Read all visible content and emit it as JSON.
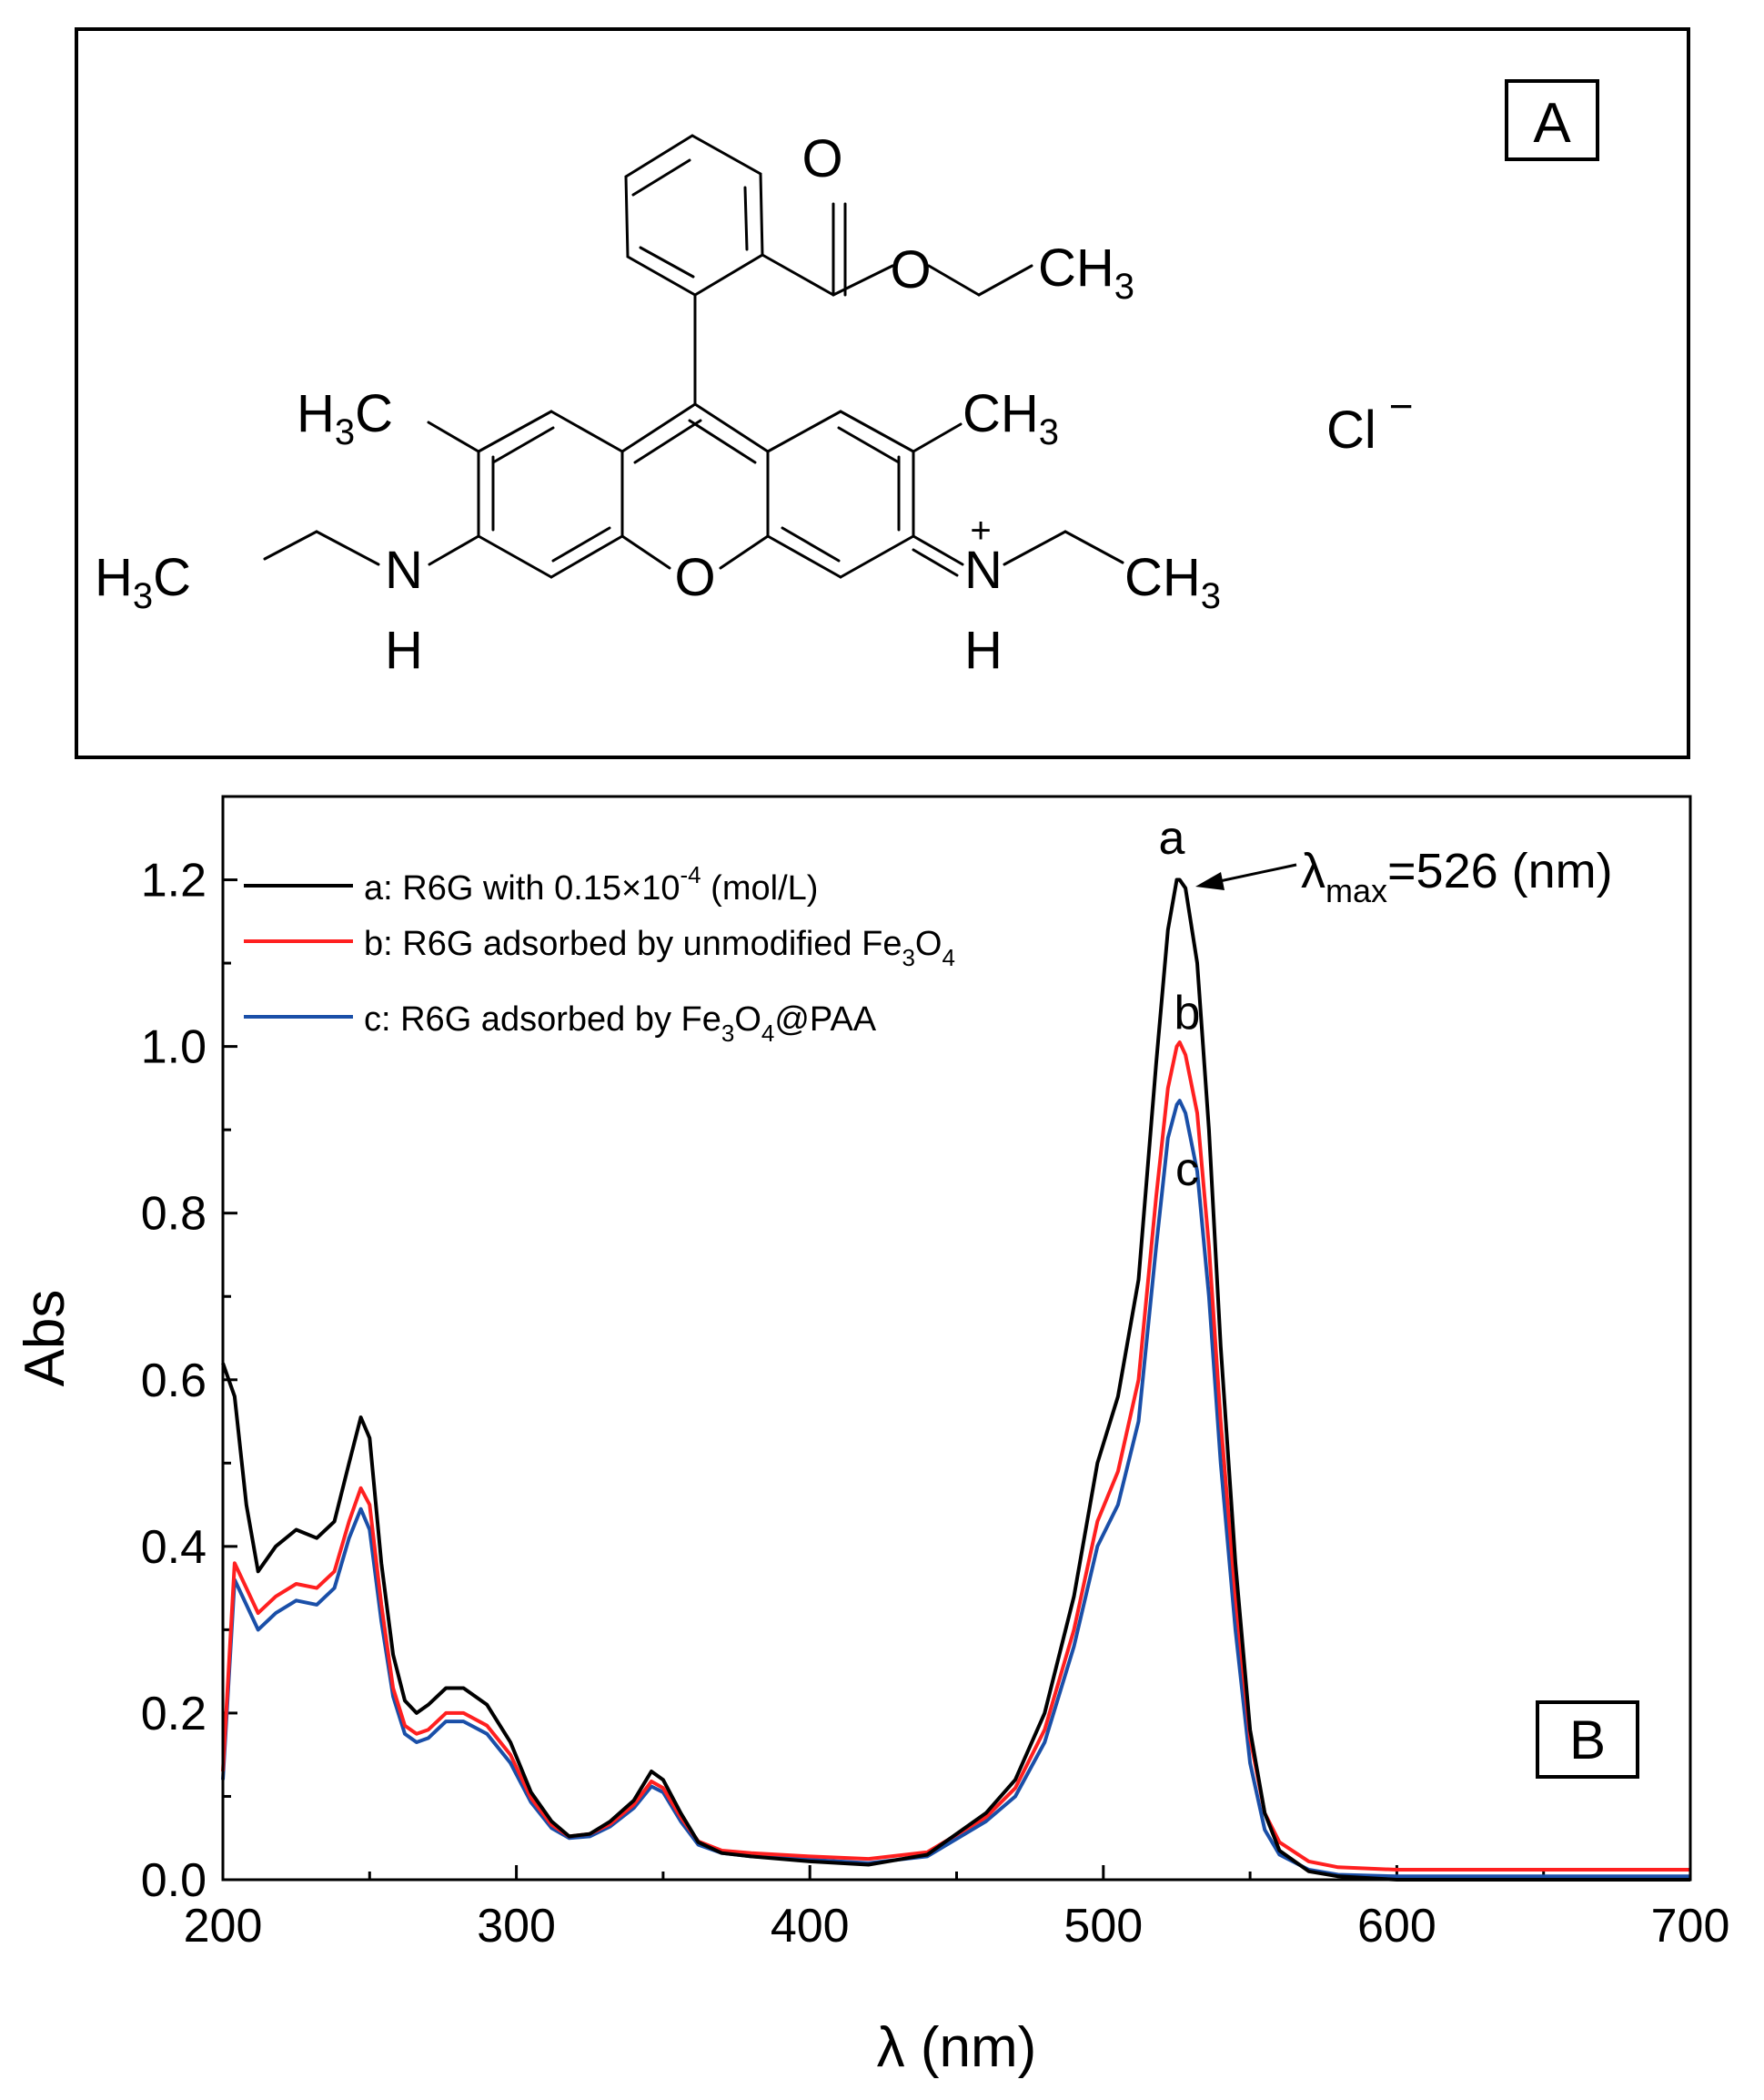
{
  "panel_a": {
    "label": "A",
    "atoms": {
      "carbonyl_o": "O",
      "ester_o": "O",
      "ester_ch3": "CH",
      "ester_ch3_sub": "3",
      "left_methyl": "H",
      "left_methyl_sub": "3",
      "left_methyl_c": "C",
      "right_methyl": "CH",
      "right_methyl_sub": "3",
      "chloride": "Cl",
      "chloride_charge": "−",
      "left_ethyl": "H",
      "left_ethyl_sub": "3",
      "left_ethyl_c": "C",
      "left_n": "N",
      "left_nh": "H",
      "ring_o": "O",
      "right_n": "N",
      "right_n_charge": "+",
      "right_nh": "H",
      "right_ethyl": "CH",
      "right_ethyl_sub": "3"
    }
  },
  "panel_b": {
    "label": "B",
    "annotation": {
      "lambda": "λ",
      "sub": "max",
      "text": "=526 (nm)"
    },
    "peak_labels": [
      "a",
      "b",
      "c"
    ],
    "legend": [
      {
        "prefix": "a: R6G with 0.15×10",
        "sup": "-4",
        "suffix": " (mol/L)"
      },
      {
        "prefix": "b: R6G adsorbed by unmodified Fe",
        "sub1": "3",
        "mid": "O",
        "sub2": "4",
        "suffix": ""
      },
      {
        "prefix": "c:  R6G adsorbed by Fe",
        "sub1": "3",
        "mid": "O",
        "sub2": "4",
        "suffix": "@PAA"
      }
    ]
  },
  "chart_data": {
    "type": "line",
    "xlabel": "λ (nm)",
    "ylabel": "Abs",
    "xlim": [
      200,
      700
    ],
    "ylim": [
      0,
      1.3
    ],
    "xticks": [
      "200",
      "300",
      "400",
      "500",
      "600",
      "700"
    ],
    "yticks": [
      "0.0",
      "0.2",
      "0.4",
      "0.6",
      "0.8",
      "1.0",
      "1.2"
    ],
    "colors": {
      "a": "#000000",
      "b": "#ff2020",
      "c": "#1a4fa8"
    },
    "series": [
      {
        "name": "a: R6G with 0.15×10-4 (mol/L)",
        "x": [
          200,
          204,
          208,
          212,
          218,
          225,
          232,
          238,
          243,
          247,
          250,
          254,
          258,
          262,
          266,
          270,
          276,
          282,
          290,
          298,
          305,
          312,
          318,
          325,
          332,
          340,
          346,
          350,
          356,
          362,
          370,
          380,
          400,
          420,
          440,
          460,
          470,
          480,
          490,
          498,
          505,
          512,
          518,
          522,
          525,
          526,
          528,
          532,
          536,
          540,
          545,
          550,
          555,
          560,
          570,
          580,
          600,
          650,
          700
        ],
        "y": [
          0.62,
          0.58,
          0.45,
          0.37,
          0.4,
          0.42,
          0.41,
          0.43,
          0.5,
          0.555,
          0.53,
          0.38,
          0.27,
          0.215,
          0.2,
          0.21,
          0.23,
          0.23,
          0.21,
          0.165,
          0.105,
          0.07,
          0.052,
          0.055,
          0.07,
          0.095,
          0.13,
          0.12,
          0.08,
          0.045,
          0.032,
          0.028,
          0.022,
          0.018,
          0.03,
          0.08,
          0.12,
          0.2,
          0.34,
          0.5,
          0.58,
          0.72,
          0.98,
          1.14,
          1.2,
          1.2,
          1.19,
          1.1,
          0.9,
          0.64,
          0.38,
          0.18,
          0.08,
          0.035,
          0.01,
          0.004,
          0.0,
          0.0,
          0.0
        ]
      },
      {
        "name": "b: R6G adsorbed by unmodified Fe3O4",
        "x": [
          200,
          204,
          208,
          212,
          218,
          225,
          232,
          238,
          243,
          247,
          250,
          254,
          258,
          262,
          266,
          270,
          276,
          282,
          290,
          298,
          305,
          312,
          318,
          325,
          332,
          340,
          346,
          350,
          356,
          362,
          370,
          380,
          400,
          420,
          440,
          460,
          470,
          480,
          490,
          498,
          505,
          512,
          518,
          522,
          525,
          526,
          528,
          532,
          536,
          540,
          545,
          550,
          555,
          560,
          570,
          580,
          600,
          650,
          700
        ],
        "y": [
          0.13,
          0.38,
          0.35,
          0.32,
          0.34,
          0.355,
          0.35,
          0.37,
          0.43,
          0.47,
          0.45,
          0.33,
          0.23,
          0.185,
          0.175,
          0.18,
          0.2,
          0.2,
          0.185,
          0.15,
          0.098,
          0.066,
          0.052,
          0.055,
          0.067,
          0.09,
          0.118,
          0.11,
          0.075,
          0.046,
          0.035,
          0.032,
          0.028,
          0.025,
          0.033,
          0.075,
          0.11,
          0.18,
          0.3,
          0.43,
          0.49,
          0.6,
          0.82,
          0.95,
          1.0,
          1.005,
          0.99,
          0.92,
          0.76,
          0.55,
          0.34,
          0.17,
          0.08,
          0.045,
          0.022,
          0.015,
          0.012,
          0.012,
          0.012
        ]
      },
      {
        "name": "c:  R6G adsorbed by Fe3O4@PAA",
        "x": [
          200,
          204,
          208,
          212,
          218,
          225,
          232,
          238,
          243,
          247,
          250,
          254,
          258,
          262,
          266,
          270,
          276,
          282,
          290,
          298,
          305,
          312,
          318,
          325,
          332,
          340,
          346,
          350,
          356,
          362,
          370,
          380,
          400,
          420,
          440,
          460,
          470,
          480,
          490,
          498,
          505,
          512,
          518,
          522,
          525,
          526,
          528,
          532,
          536,
          540,
          545,
          550,
          555,
          560,
          570,
          580,
          600,
          650,
          700
        ],
        "y": [
          0.12,
          0.36,
          0.33,
          0.3,
          0.32,
          0.335,
          0.33,
          0.35,
          0.41,
          0.445,
          0.42,
          0.31,
          0.22,
          0.175,
          0.165,
          0.17,
          0.19,
          0.19,
          0.175,
          0.14,
          0.093,
          0.062,
          0.05,
          0.052,
          0.064,
          0.086,
          0.112,
          0.105,
          0.07,
          0.042,
          0.032,
          0.028,
          0.024,
          0.02,
          0.028,
          0.07,
          0.1,
          0.165,
          0.28,
          0.4,
          0.45,
          0.55,
          0.76,
          0.89,
          0.93,
          0.935,
          0.92,
          0.85,
          0.7,
          0.5,
          0.3,
          0.14,
          0.06,
          0.03,
          0.012,
          0.006,
          0.004,
          0.004,
          0.004
        ]
      }
    ]
  }
}
